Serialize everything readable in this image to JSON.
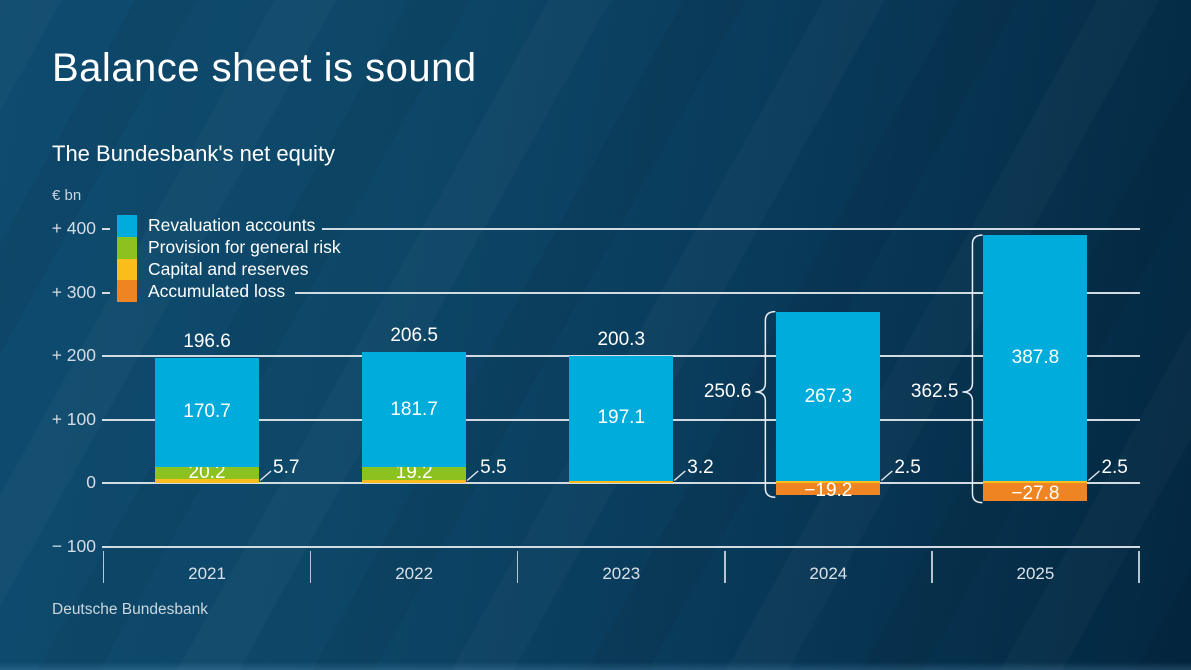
{
  "page": {
    "title": "Balance sheet is sound",
    "subtitle": "The Bundesbank's net equity",
    "unit_label": "€ bn",
    "source": "Deutsche Bundesbank"
  },
  "colors": {
    "background_left": "#0e4b6f",
    "background_top_right": "#032740",
    "grid": "#d3dbe2",
    "text": "#ffffff",
    "revaluation": "#00ACDC",
    "provision": "#8CC21F",
    "capital": "#FBBD1B",
    "loss": "#EE8422"
  },
  "chart_data": {
    "type": "bar",
    "stacked": true,
    "title": "The Bundesbank's net equity",
    "unit": "€ bn",
    "categories": [
      "2021",
      "2022",
      "2023",
      "2024",
      "2025"
    ],
    "series": [
      {
        "name": "Revaluation accounts",
        "key": "revaluation",
        "color": "#00ACDC",
        "values": [
          170.7,
          181.7,
          197.1,
          267.3,
          387.8
        ]
      },
      {
        "name": "Provision for general risk",
        "key": "provision",
        "color": "#8CC21F",
        "values": [
          20.2,
          19.2,
          null,
          null,
          null
        ]
      },
      {
        "name": "Capital and reserves",
        "key": "capital",
        "color": "#FBBD1B",
        "values": [
          5.7,
          5.5,
          3.2,
          2.5,
          2.5
        ]
      },
      {
        "name": "Accumulated loss",
        "key": "loss",
        "color": "#EE8422",
        "values": [
          null,
          null,
          null,
          -19.2,
          -27.8
        ]
      }
    ],
    "net_totals": [
      196.6,
      206.5,
      200.3,
      250.6,
      362.5
    ],
    "totals_with_bracket": [
      false,
      false,
      false,
      true,
      true
    ],
    "y_axis": {
      "tick_labels": [
        "+ 400",
        "+ 300",
        "+ 200",
        "+ 100",
        "0",
        "− 100"
      ],
      "tick_values": [
        400,
        300,
        200,
        100,
        0,
        -100
      ],
      "ylim": [
        -100,
        450
      ]
    },
    "legend_position": "top-left",
    "grid": "horizontal"
  }
}
